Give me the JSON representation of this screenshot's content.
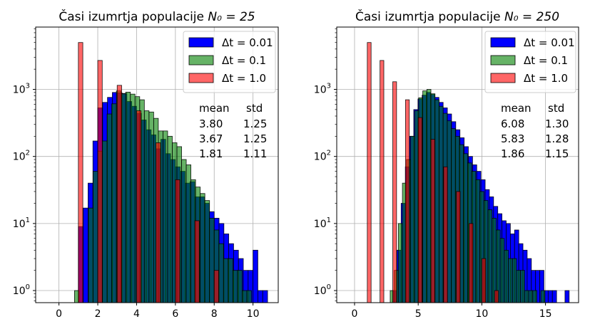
{
  "chart_data": [
    {
      "type": "histogram",
      "title": "Časi izumrtja populacije",
      "title_math": "N₀ = 25",
      "xlim": [
        -1.2,
        11.3
      ],
      "ylim_log": [
        0.66,
        8500
      ],
      "yscale": "log",
      "xticks": [
        "0",
        "2",
        "4",
        "6",
        "8",
        "10"
      ],
      "xtick_values": [
        0,
        2,
        4,
        6,
        8,
        10
      ],
      "grid": true,
      "legend_position": "top-right",
      "legend": [
        "Δt = 0.01",
        "Δt = 0.1",
        "Δt = 1.0"
      ],
      "series": [
        {
          "name": "Δt = 0.01",
          "color": "#0000ff",
          "alpha": 1.0,
          "bin_start": 1.0,
          "bin_width": 0.25,
          "counts": [
            9,
            17,
            40,
            170,
            530,
            640,
            760,
            900,
            890,
            870,
            660,
            560,
            440,
            350,
            250,
            210,
            130,
            180,
            110,
            90,
            70,
            60,
            40,
            42,
            25,
            25,
            20,
            15,
            12,
            10,
            7,
            5,
            4,
            3,
            2,
            2,
            4,
            1,
            1,
            0
          ]
        },
        {
          "name": "Δt = 0.1",
          "color": "#008000",
          "alpha": 0.6,
          "bin_start": 0.8,
          "bin_width": 0.24,
          "counts": [
            1,
            0,
            0,
            17,
            60,
            120,
            170,
            430,
            610,
            950,
            860,
            910,
            850,
            780,
            700,
            480,
            460,
            370,
            240,
            240,
            200,
            160,
            140,
            90,
            75,
            45,
            35,
            28,
            22,
            12,
            8,
            5,
            3,
            3,
            2,
            2,
            1,
            1,
            0
          ]
        },
        {
          "name": "Δt = 1.0",
          "color": "#ff0000",
          "alpha": 0.6,
          "bin_start": 1.0,
          "bin_width": 0.23,
          "bars": [
            [
              1.0,
              5000
            ],
            [
              2.0,
              2700
            ],
            [
              3.0,
              1150
            ],
            [
              4.0,
              480
            ],
            [
              5.0,
              160
            ],
            [
              6.0,
              45
            ],
            [
              7.0,
              11
            ],
            [
              8.0,
              2
            ]
          ]
        }
      ],
      "stats": {
        "header": [
          "mean",
          "std"
        ],
        "rows": [
          [
            "3.80",
            "1.25"
          ],
          [
            "3.67",
            "1.25"
          ],
          [
            "1.81",
            "1.11"
          ]
        ]
      }
    },
    {
      "type": "histogram",
      "title": "Časi izumrtja populacije",
      "title_math": "N₀ = 250",
      "xlim": [
        -1.4,
        17.6
      ],
      "ylim_log": [
        0.66,
        8500
      ],
      "yscale": "log",
      "xticks": [
        "0",
        "5",
        "10",
        "15"
      ],
      "xtick_values": [
        0,
        5,
        10,
        15
      ],
      "grid": true,
      "legend_position": "top-right",
      "legend": [
        "Δt = 0.01",
        "Δt = 0.1",
        "Δt = 1.0"
      ],
      "series": [
        {
          "name": "Δt = 0.01",
          "color": "#0000ff",
          "alpha": 1.0,
          "bin_start": 3.0,
          "bin_width": 0.33,
          "counts": [
            1,
            4,
            20,
            70,
            200,
            500,
            720,
            820,
            900,
            840,
            760,
            640,
            530,
            430,
            330,
            250,
            190,
            140,
            100,
            75,
            60,
            45,
            32,
            25,
            18,
            14,
            11,
            10,
            7,
            8,
            5,
            4,
            3,
            2,
            2,
            2,
            1,
            1,
            1,
            0,
            0,
            1,
            0,
            0,
            0,
            0,
            0,
            0,
            0
          ]
        },
        {
          "name": "Δt = 0.1",
          "color": "#008000",
          "alpha": 0.6,
          "bin_start": 2.8,
          "bin_width": 0.32,
          "counts": [
            1,
            2,
            10,
            40,
            90,
            200,
            480,
            750,
            950,
            1000,
            860,
            700,
            560,
            440,
            340,
            260,
            200,
            150,
            110,
            80,
            60,
            45,
            30,
            22,
            16,
            12,
            8,
            6,
            4,
            3,
            3,
            2,
            2,
            1,
            1,
            1,
            0,
            1,
            0
          ]
        },
        {
          "name": "Δt = 1.0",
          "color": "#ff0000",
          "alpha": 0.6,
          "bin_start": 1.0,
          "bin_width": 0.3,
          "bars": [
            [
              1.0,
              5000
            ],
            [
              2.0,
              2700
            ],
            [
              3.0,
              1300
            ],
            [
              4.0,
              700
            ],
            [
              5.0,
              380
            ],
            [
              6.0,
              180
            ],
            [
              7.0,
              70
            ],
            [
              8.0,
              30
            ],
            [
              9.0,
              10
            ],
            [
              10.0,
              3
            ],
            [
              11.0,
              1
            ]
          ]
        }
      ],
      "stats": {
        "header": [
          "mean",
          "std"
        ],
        "rows": [
          [
            "6.08",
            "1.30"
          ],
          [
            "5.83",
            "1.28"
          ],
          [
            "1.86",
            "1.15"
          ]
        ]
      }
    }
  ]
}
